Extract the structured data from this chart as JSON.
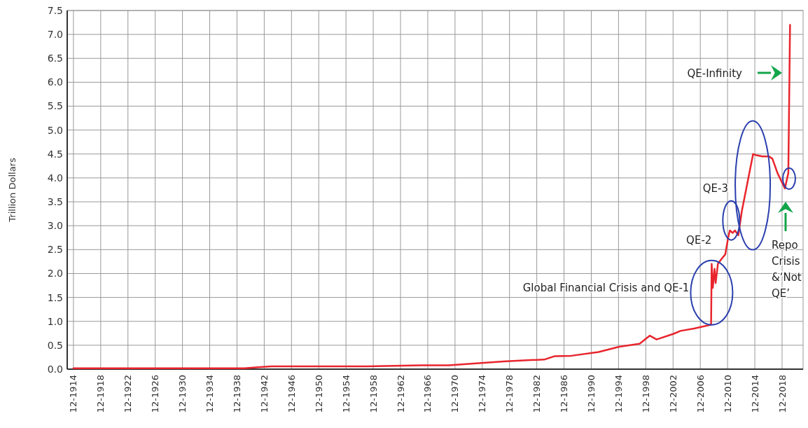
{
  "chart_data": {
    "type": "line",
    "ylabel": "Trillion Dollars",
    "xlim": [
      "1914-01",
      "2022-01"
    ],
    "ylim": [
      0,
      7.5
    ],
    "xticks": [
      {
        "value": "1914-12",
        "label": "12-1914"
      },
      {
        "value": "1918-12",
        "label": "12-1918"
      },
      {
        "value": "1922-12",
        "label": "12-1922"
      },
      {
        "value": "1926-12",
        "label": "12-1926"
      },
      {
        "value": "1930-12",
        "label": "12-1930"
      },
      {
        "value": "1934-12",
        "label": "12-1934"
      },
      {
        "value": "1938-12",
        "label": "12-1938"
      },
      {
        "value": "1942-12",
        "label": "12-1942"
      },
      {
        "value": "1946-12",
        "label": "12-1946"
      },
      {
        "value": "1950-12",
        "label": "12-1950"
      },
      {
        "value": "1954-12",
        "label": "12-1954"
      },
      {
        "value": "1958-12",
        "label": "12-1958"
      },
      {
        "value": "1962-12",
        "label": "12-1962"
      },
      {
        "value": "1966-12",
        "label": "12-1966"
      },
      {
        "value": "1970-12",
        "label": "12-1970"
      },
      {
        "value": "1974-12",
        "label": "12-1974"
      },
      {
        "value": "1978-12",
        "label": "12-1978"
      },
      {
        "value": "1982-12",
        "label": "12-1982"
      },
      {
        "value": "1986-12",
        "label": "12-1986"
      },
      {
        "value": "1990-12",
        "label": "12-1990"
      },
      {
        "value": "1994-12",
        "label": "12-1994"
      },
      {
        "value": "1998-12",
        "label": "12-1998"
      },
      {
        "value": "2002-12",
        "label": "12-2002"
      },
      {
        "value": "2006-12",
        "label": "12-2006"
      },
      {
        "value": "2010-12",
        "label": "12-2010"
      },
      {
        "value": "2014-12",
        "label": "12-2014"
      },
      {
        "value": "2018-12",
        "label": "12-2018"
      }
    ],
    "yticks": [
      {
        "value": 0,
        "label": "0.0"
      },
      {
        "value": 0.5,
        "label": "0.5"
      },
      {
        "value": 1,
        "label": "1.0"
      },
      {
        "value": 1.5,
        "label": "1.5"
      },
      {
        "value": 2,
        "label": "2.0"
      },
      {
        "value": 2.5,
        "label": "2.5"
      },
      {
        "value": 3,
        "label": "3.0"
      },
      {
        "value": 3.5,
        "label": "3.5"
      },
      {
        "value": 4,
        "label": "4.0"
      },
      {
        "value": 4.5,
        "label": "4.5"
      },
      {
        "value": 5,
        "label": "5.0"
      },
      {
        "value": 5.5,
        "label": "5.5"
      },
      {
        "value": 6,
        "label": "6.0"
      },
      {
        "value": 6.5,
        "label": "6.5"
      },
      {
        "value": 7,
        "label": "7.0"
      },
      {
        "value": 7.5,
        "label": "7.5"
      }
    ],
    "grid": true,
    "series": [
      {
        "color": "#e8252d",
        "x": [
          "1914-12",
          "1925-01",
          "1935-01",
          "1940-01",
          "1942-01",
          "1944-01",
          "1946-01",
          "1950-01",
          "1958-01",
          "1962-01",
          "1966-01",
          "1970-01",
          "1974-01",
          "1978-01",
          "1982-01",
          "1984-01",
          "1985-07",
          "1988-01",
          "1992-01",
          "1995-01",
          "1998-01",
          "1999-07",
          "2000-07",
          "2003-01",
          "2004-01",
          "2006-01",
          "2008-07",
          "2008-08",
          "2008-10",
          "2009-01",
          "2009-03",
          "2009-07",
          "2010-01",
          "2010-08",
          "2011-01",
          "2011-04",
          "2011-09",
          "2012-01",
          "2012-07",
          "2013-01",
          "2014-09",
          "2015-01",
          "2016-01",
          "2017-01",
          "2017-07",
          "2018-04",
          "2019-05",
          "2019-11",
          "2020-02"
        ],
        "values": [
          0.02,
          0.02,
          0.02,
          0.02,
          0.04,
          0.06,
          0.06,
          0.06,
          0.06,
          0.07,
          0.08,
          0.08,
          0.12,
          0.16,
          0.19,
          0.2,
          0.27,
          0.28,
          0.36,
          0.47,
          0.53,
          0.7,
          0.62,
          0.74,
          0.8,
          0.85,
          0.93,
          2.2,
          1.7,
          2.1,
          1.8,
          2.2,
          2.3,
          2.4,
          2.75,
          2.9,
          2.85,
          2.9,
          2.8,
          3.3,
          4.5,
          4.48,
          4.45,
          4.45,
          4.4,
          4.1,
          3.78,
          4.1,
          7.2
        ]
      }
    ],
    "annotations": [
      "QE-Infinity",
      {
        "text": "QE-3",
        "x": "2013-08",
        "y": 3.8
      },
      {
        "text": "QE-2",
        "x": "2011-04",
        "y": 2.7
      },
      {
        "text": "Global Financial Crisis and QE-1",
        "x": "2008-08",
        "y": 1.6
      },
      "Repo Crisis &‘Not QE’"
    ]
  }
}
